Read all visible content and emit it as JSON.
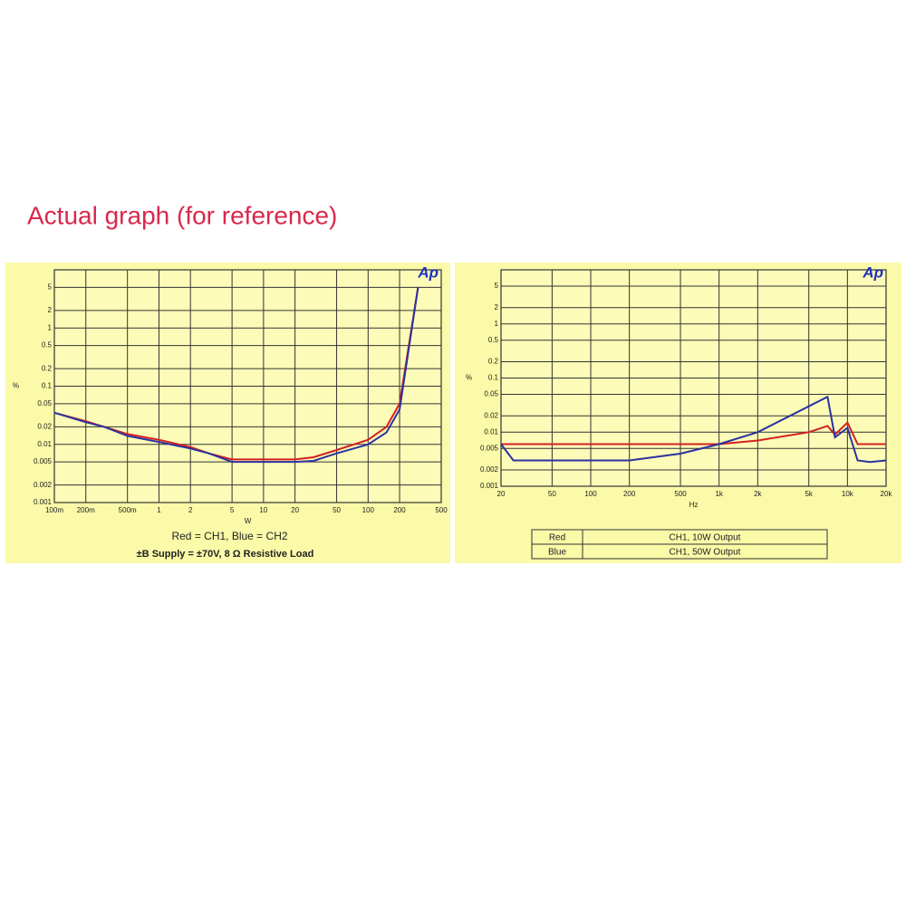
{
  "heading": "Actual graph (for reference)",
  "chart_data": [
    {
      "type": "line",
      "logo": "Ap",
      "x_label": "W",
      "y_label": "%",
      "legend_text": "Red = CH1,  Blue  = CH2",
      "subtitle": "±B Supply = ±70V,   8 Ω Resistive Load",
      "log_x": true,
      "log_y": true,
      "grid": true,
      "xlim": [
        0.1,
        500
      ],
      "ylim": [
        0.001,
        10
      ],
      "xticks": [
        {
          "value": 0.1,
          "label": "100m"
        },
        {
          "value": 0.2,
          "label": "200m"
        },
        {
          "value": 0.5,
          "label": "500m"
        },
        1,
        2,
        5,
        10,
        20,
        50,
        100,
        200,
        500
      ],
      "yticks": [
        0.001,
        0.002,
        0.005,
        0.01,
        0.02,
        0.05,
        0.1,
        0.2,
        0.5,
        1,
        2,
        5
      ],
      "x": [
        0.1,
        0.2,
        0.3,
        0.5,
        1,
        2,
        3,
        5,
        10,
        20,
        30,
        50,
        100,
        150,
        200,
        300
      ],
      "series": [
        {
          "color": "#d42020",
          "values": [
            0.035,
            0.025,
            0.02,
            0.015,
            0.012,
            0.009,
            0.007,
            0.0055,
            0.0055,
            0.0055,
            0.006,
            0.008,
            0.012,
            0.02,
            0.05,
            5
          ]
        },
        {
          "color": "#2a32a0",
          "values": [
            0.035,
            0.024,
            0.02,
            0.014,
            0.011,
            0.0085,
            0.007,
            0.005,
            0.005,
            0.005,
            0.0052,
            0.007,
            0.01,
            0.016,
            0.04,
            5
          ]
        }
      ]
    },
    {
      "type": "line",
      "logo": "Ap",
      "x_label": "Hz",
      "y_label": "%",
      "log_x": true,
      "log_y": true,
      "grid": true,
      "xlim": [
        20,
        20000
      ],
      "ylim": [
        0.001,
        10
      ],
      "xticks": [
        20,
        50,
        100,
        200,
        500,
        {
          "value": 1000,
          "label": "1k"
        },
        {
          "value": 2000,
          "label": "2k"
        },
        {
          "value": 5000,
          "label": "5k"
        },
        {
          "value": 10000,
          "label": "10k"
        },
        {
          "value": 20000,
          "label": "20k"
        }
      ],
      "yticks": [
        0.001,
        0.002,
        0.005,
        0.01,
        0.02,
        0.05,
        0.1,
        0.2,
        0.5,
        1,
        2,
        5
      ],
      "x": [
        20,
        25,
        50,
        100,
        200,
        500,
        1000,
        2000,
        5000,
        7000,
        8000,
        10000,
        12000,
        15000,
        20000
      ],
      "series": [
        {
          "name": "Red",
          "description": "CH1, 10W Output",
          "color": "#d42020",
          "values": [
            0.006,
            0.006,
            0.006,
            0.006,
            0.006,
            0.006,
            0.006,
            0.007,
            0.01,
            0.013,
            0.009,
            0.015,
            0.006,
            0.006,
            0.006
          ]
        },
        {
          "name": "Blue",
          "description": "CH1, 50W Output",
          "color": "#2a32a0",
          "values": [
            0.006,
            0.003,
            0.003,
            0.003,
            0.003,
            0.004,
            0.006,
            0.01,
            0.03,
            0.045,
            0.008,
            0.012,
            0.003,
            0.0028,
            0.003
          ]
        }
      ]
    }
  ]
}
